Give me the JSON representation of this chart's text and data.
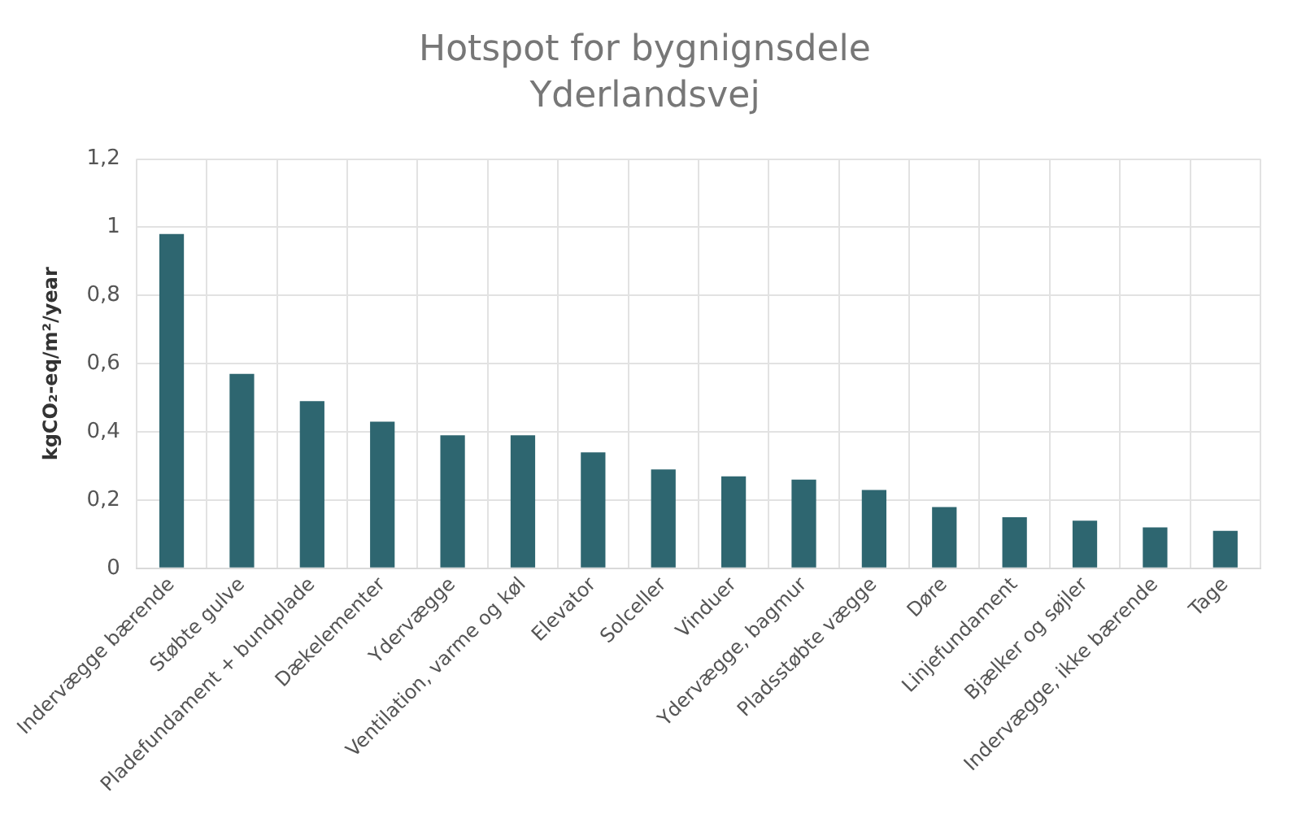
{
  "chart_data": {
    "type": "bar",
    "title": "Hotspot for bygnignsdele",
    "subtitle": "Yderlandsvej",
    "ylabel": "kgCO₂-eq/m²/year",
    "categories": [
      "Indervægge bærende",
      "Støbte gulve",
      "Pladefundament + bundplade",
      "Dækelementer",
      "Ydervægge",
      "Ventilation, varme og køl",
      "Elevator",
      "Solceller",
      "Vinduer",
      "Ydervægge, bagmur",
      "Pladsstøbte vægge",
      "Døre",
      "Linjefundament",
      "Bjælker og søjler",
      "Indervægge, ikke bærende",
      "Tage"
    ],
    "values": [
      0.98,
      0.57,
      0.49,
      0.43,
      0.39,
      0.39,
      0.34,
      0.29,
      0.27,
      0.26,
      0.23,
      0.18,
      0.15,
      0.14,
      0.12,
      0.11
    ],
    "color": "#2e6670",
    "ylim": [
      0,
      1.2
    ],
    "yticks": [
      {
        "value": 0,
        "label": "0"
      },
      {
        "value": 0.2,
        "label": "0,2"
      },
      {
        "value": 0.4,
        "label": "0,4"
      },
      {
        "value": 0.6,
        "label": "0,6"
      },
      {
        "value": 0.8,
        "label": "0,8"
      },
      {
        "value": 1,
        "label": "1"
      },
      {
        "value": 1.2,
        "label": "1,2"
      }
    ],
    "grid": true
  }
}
